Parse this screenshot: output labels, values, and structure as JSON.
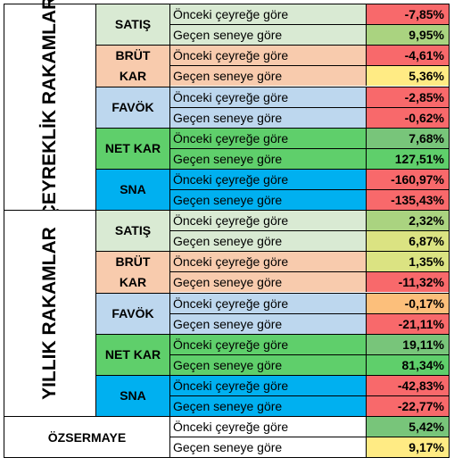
{
  "sections": [
    {
      "title": "ÇEYREKLİK RAKAMLAR",
      "groups": [
        {
          "name": "SATIŞ",
          "color": "#d9ead3",
          "rows": [
            {
              "label": "Önceki çeyreğe göre",
              "value": "-7,85%",
              "color": "#f8696b"
            },
            {
              "label": "Geçen seneye göre",
              "value": "9,95%",
              "color": "#aad380"
            }
          ]
        },
        {
          "name": "BRÜT\nKAR",
          "color": "#f8cbad",
          "rows": [
            {
              "label": "Önceki çeyreğe göre",
              "value": "-4,61%",
              "color": "#f8696b"
            },
            {
              "label": "Geçen seneye göre",
              "value": "5,36%",
              "color": "#ffeb84"
            }
          ]
        },
        {
          "name": "FAVÖK",
          "color": "#bdd7ee",
          "rows": [
            {
              "label": "Önceki çeyreğe göre",
              "value": "-2,85%",
              "color": "#f8696b"
            },
            {
              "label": "Geçen seneye göre",
              "value": "-0,62%",
              "color": "#f8696b"
            }
          ]
        },
        {
          "name": "NET KAR",
          "color": "#5fcf6b",
          "rows": [
            {
              "label": "Önceki çeyreğe göre",
              "value": "7,68%",
              "color": "#78c57a"
            },
            {
              "label": "Geçen seneye göre",
              "value": "127,51%",
              "color": "#5fcf6b"
            }
          ]
        },
        {
          "name": "SNA",
          "color": "#00b0f0",
          "rows": [
            {
              "label": "Önceki çeyreğe göre",
              "value": "-160,97%",
              "color": "#f8696b"
            },
            {
              "label": "Geçen seneye göre",
              "value": "-135,43%",
              "color": "#f8696b"
            }
          ]
        }
      ]
    },
    {
      "title": "YILLIK RAKAMLAR",
      "groups": [
        {
          "name": "SATIŞ",
          "color": "#d9ead3",
          "rows": [
            {
              "label": "Önceki çeyreğe göre",
              "value": "2,32%",
              "color": "#aad380"
            },
            {
              "label": "Geçen seneye göre",
              "value": "6,87%",
              "color": "#dbe382"
            }
          ]
        },
        {
          "name": "BRÜT\nKAR",
          "color": "#f8cbad",
          "rows": [
            {
              "label": "Önceki çeyreğe göre",
              "value": "1,35%",
              "color": "#dbe382"
            },
            {
              "label": "Geçen seneye göre",
              "value": "-11,32%",
              "color": "#f8696b"
            }
          ]
        },
        {
          "name": "FAVÖK",
          "color": "#bdd7ee",
          "rows": [
            {
              "label": "Önceki çeyreğe göre",
              "value": "-0,17%",
              "color": "#fcbf7b"
            },
            {
              "label": "Geçen seneye göre",
              "value": "-21,11%",
              "color": "#f8696b"
            }
          ]
        },
        {
          "name": "NET KAR",
          "color": "#5fcf6b",
          "rows": [
            {
              "label": "Önceki çeyreğe göre",
              "value": "19,11%",
              "color": "#78c57a"
            },
            {
              "label": "Geçen seneye göre",
              "value": "81,34%",
              "color": "#5fcf6b"
            }
          ]
        },
        {
          "name": "SNA",
          "color": "#00b0f0",
          "rows": [
            {
              "label": "Önceki çeyreğe göre",
              "value": "-42,83%",
              "color": "#f8696b"
            },
            {
              "label": "Geçen seneye göre",
              "value": "-22,77%",
              "color": "#f8696b"
            }
          ]
        }
      ]
    }
  ],
  "ozsermaye": {
    "name": "ÖZSERMAYE",
    "rows": [
      {
        "label": "Önceki çeyreğe göre",
        "value": "5,42%",
        "color": "#78c57a"
      },
      {
        "label": "Geçen seneye göre",
        "value": "9,17%",
        "color": "#ffeb84"
      }
    ]
  }
}
